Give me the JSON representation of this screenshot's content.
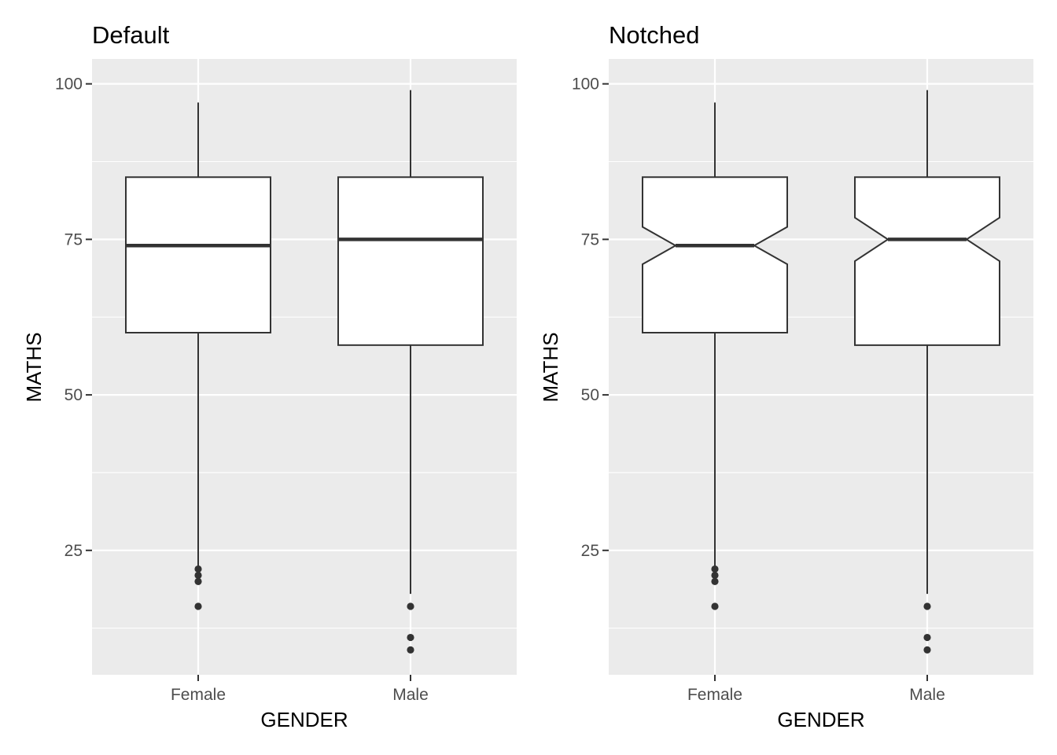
{
  "figure": {
    "background_color": "#ffffff",
    "panel_color": "#ebebeb",
    "grid_color": "#ffffff",
    "box_fill": "#ffffff",
    "line_color": "#333333",
    "tick_color": "#333333"
  },
  "chart_data": [
    {
      "type": "box",
      "title": "Default",
      "notched": false,
      "xlabel": "GENDER",
      "ylabel": "MATHS",
      "categories": [
        "Female",
        "Male"
      ],
      "ylim": [
        5,
        104
      ],
      "y_ticks": [
        25,
        50,
        75,
        100
      ],
      "y_minor_ticks": [
        12.5,
        37.5,
        62.5,
        87.5
      ],
      "grid": true,
      "boxes": [
        {
          "category": "Female",
          "whisker_low": 22.5,
          "q1": 60,
          "median": 74,
          "q3": 85,
          "whisker_high": 97,
          "outliers": [
            22,
            21,
            20,
            16
          ]
        },
        {
          "category": "Male",
          "whisker_low": 18,
          "q1": 58,
          "median": 75,
          "q3": 85,
          "whisker_high": 99,
          "outliers": [
            16,
            11,
            9
          ]
        }
      ]
    },
    {
      "type": "box",
      "title": "Notched",
      "notched": true,
      "xlabel": "GENDER",
      "ylabel": "MATHS",
      "categories": [
        "Female",
        "Male"
      ],
      "ylim": [
        5,
        104
      ],
      "y_ticks": [
        25,
        50,
        75,
        100
      ],
      "y_minor_ticks": [
        12.5,
        37.5,
        62.5,
        87.5
      ],
      "grid": true,
      "boxes": [
        {
          "category": "Female",
          "whisker_low": 22.5,
          "q1": 60,
          "median": 74,
          "q3": 85,
          "whisker_high": 97,
          "notch_low": 71,
          "notch_high": 77,
          "outliers": [
            22,
            21,
            20,
            16
          ]
        },
        {
          "category": "Male",
          "whisker_low": 18,
          "q1": 58,
          "median": 75,
          "q3": 85,
          "whisker_high": 99,
          "notch_low": 71.5,
          "notch_high": 78.5,
          "outliers": [
            16,
            11,
            9
          ]
        }
      ]
    }
  ]
}
